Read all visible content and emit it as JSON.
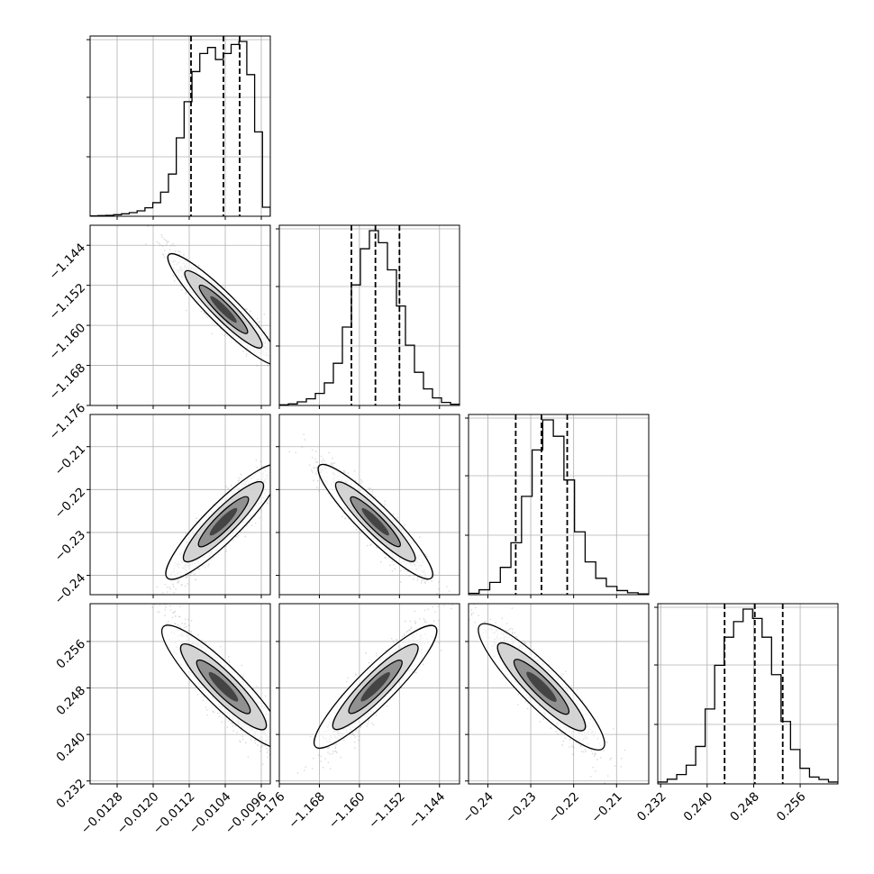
{
  "chart_data": {
    "type": "corner",
    "grid": true,
    "parameters": [
      {
        "range": [
          -0.0134,
          -0.0094
        ],
        "quantiles": [
          -0.01116,
          -0.01044,
          -0.01008
        ]
      },
      {
        "range": [
          -1.176,
          -1.14
        ],
        "quantiles": [
          -1.1616,
          -1.1568,
          -1.152
        ]
      },
      {
        "range": [
          -0.2445,
          -0.2025
        ],
        "quantiles": [
          -0.2335,
          -0.2275,
          -0.2215
        ]
      },
      {
        "range": [
          0.2315,
          0.2625
        ],
        "quantiles": [
          0.243,
          0.2482,
          0.253
        ]
      }
    ],
    "axis_ticks": {
      "x": [
        {
          "values": [
            -0.0128,
            -0.012,
            -0.0112,
            -0.0104,
            -0.0096
          ],
          "labels": [
            "−0.0128",
            "−0.0120",
            "−0.0112",
            "−0.0104",
            "−0.0096"
          ]
        },
        {
          "values": [
            -1.176,
            -1.168,
            -1.16,
            -1.152,
            -1.144
          ],
          "labels": [
            "−1.176",
            "−1.168",
            "−1.160",
            "−1.152",
            "−1.144"
          ]
        },
        {
          "values": [
            -0.24,
            -0.23,
            -0.22,
            -0.21
          ],
          "labels": [
            "−0.24",
            "−0.23",
            "−0.22",
            "−0.21"
          ]
        },
        {
          "values": [
            0.232,
            0.24,
            0.248,
            0.256
          ],
          "labels": [
            "0.232",
            "0.240",
            "0.248",
            "0.256"
          ]
        }
      ],
      "y": [
        null,
        {
          "values": [
            -1.176,
            -1.168,
            -1.16,
            -1.152,
            -1.144
          ],
          "labels": [
            "−1.176",
            "−1.168",
            "−1.160",
            "−1.152",
            "−1.144"
          ]
        },
        {
          "values": [
            -0.24,
            -0.23,
            -0.22,
            -0.21
          ],
          "labels": [
            "−0.24",
            "−0.23",
            "−0.22",
            "−0.21"
          ]
        },
        {
          "values": [
            0.232,
            0.24,
            0.248,
            0.256
          ],
          "labels": [
            "0.232",
            "0.240",
            "0.248",
            "0.256"
          ]
        }
      ]
    },
    "histograms": [
      {
        "param": 0,
        "edges_range": [
          -0.0134,
          -0.0094
        ],
        "counts": [
          1,
          2,
          3,
          5,
          8,
          12,
          18,
          28,
          45,
          80,
          140,
          260,
          380,
          480,
          540,
          560,
          520,
          540,
          570,
          580,
          470,
          280,
          30
        ]
      },
      {
        "param": 1,
        "edges_range": [
          -1.176,
          -1.14
        ],
        "counts": [
          2,
          5,
          12,
          22,
          40,
          75,
          140,
          260,
          400,
          520,
          580,
          540,
          450,
          330,
          200,
          110,
          55,
          25,
          10,
          4
        ]
      },
      {
        "param": 2,
        "edges_range": [
          -0.2445,
          -0.2025
        ],
        "counts": [
          5,
          18,
          45,
          100,
          190,
          360,
          530,
          640,
          580,
          420,
          230,
          120,
          60,
          30,
          15,
          7,
          3
        ]
      },
      {
        "param": 3,
        "edges_range": [
          0.2315,
          0.2625
        ],
        "counts": [
          6,
          15,
          30,
          60,
          120,
          240,
          380,
          470,
          520,
          560,
          530,
          470,
          350,
          200,
          110,
          50,
          22,
          14,
          6
        ]
      }
    ],
    "pairs": [
      {
        "x": 0,
        "y": 1,
        "rho": -0.93,
        "curve": 0.16
      },
      {
        "x": 0,
        "y": 2,
        "rho": 0.9,
        "curve": -0.16
      },
      {
        "x": 1,
        "y": 2,
        "rho": -0.92,
        "curve": 0
      },
      {
        "x": 0,
        "y": 3,
        "rho": -0.9,
        "curve": 0.16
      },
      {
        "x": 1,
        "y": 3,
        "rho": 0.91,
        "curve": 0
      },
      {
        "x": 2,
        "y": 3,
        "rho": -0.9,
        "curve": 0
      }
    ]
  }
}
